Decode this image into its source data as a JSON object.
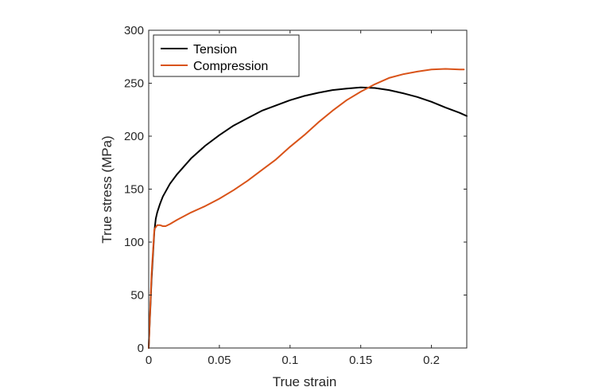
{
  "chart_data": {
    "type": "line",
    "xlabel": "True strain",
    "ylabel": "True stress  (MPa)",
    "xlim": [
      0,
      0.225
    ],
    "ylim": [
      0,
      300
    ],
    "xticks": [
      0,
      0.05,
      0.1,
      0.15,
      0.2
    ],
    "xtick_labels": [
      "0",
      "0.05",
      "0.1",
      "0.15",
      "0.2"
    ],
    "yticks": [
      0,
      50,
      100,
      150,
      200,
      250,
      300
    ],
    "ytick_labels": [
      "0",
      "50",
      "100",
      "150",
      "200",
      "250",
      "300"
    ],
    "grid": false,
    "legend_position": "top-left",
    "series": [
      {
        "name": "Tension",
        "color": "#000000",
        "x": [
          0,
          0.002,
          0.004,
          0.005,
          0.006,
          0.008,
          0.01,
          0.015,
          0.02,
          0.03,
          0.04,
          0.05,
          0.06,
          0.07,
          0.08,
          0.09,
          0.1,
          0.11,
          0.12,
          0.13,
          0.14,
          0.15,
          0.16,
          0.17,
          0.18,
          0.19,
          0.2,
          0.21,
          0.22,
          0.225
        ],
        "y": [
          0,
          65,
          110,
          122,
          128,
          136,
          143,
          155,
          164,
          179,
          191,
          201,
          210,
          217,
          224,
          229,
          234,
          238,
          241,
          243.5,
          245,
          246,
          245.5,
          243.5,
          240.5,
          237,
          232.5,
          227,
          222,
          219
        ]
      },
      {
        "name": "Compression",
        "color": "#d95319",
        "x": [
          0,
          0.002,
          0.004,
          0.006,
          0.008,
          0.01,
          0.012,
          0.015,
          0.02,
          0.03,
          0.04,
          0.05,
          0.06,
          0.07,
          0.08,
          0.09,
          0.1,
          0.11,
          0.12,
          0.13,
          0.14,
          0.15,
          0.16,
          0.17,
          0.18,
          0.19,
          0.2,
          0.21,
          0.22,
          0.223
        ],
        "y": [
          0,
          70,
          112,
          116,
          116,
          115,
          115,
          117,
          121,
          128,
          134,
          141,
          149,
          158,
          168,
          178,
          190,
          201,
          213,
          224,
          234,
          242,
          249,
          255,
          258.5,
          261,
          263,
          263.5,
          263,
          263
        ]
      }
    ]
  }
}
